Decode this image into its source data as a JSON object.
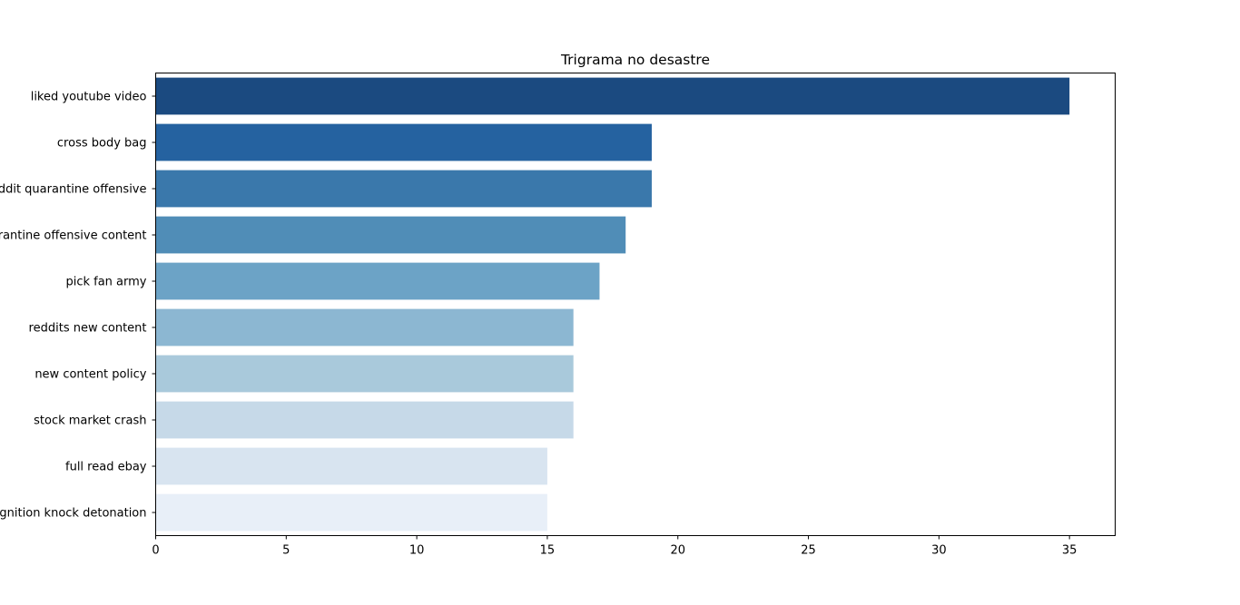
{
  "chart_data": {
    "type": "bar",
    "orientation": "horizontal",
    "title": "Trigrama no desastre",
    "xlabel": "",
    "ylabel": "",
    "categories": [
      "liked youtube video",
      "cross body bag",
      "reddit quarantine offensive",
      "quarantine offensive content",
      "pick fan army",
      "reddits new content",
      "new content policy",
      "stock market crash",
      "full read ebay",
      "ignition knock detonation"
    ],
    "values": [
      35,
      19,
      19,
      18,
      17,
      16,
      16,
      16,
      15,
      15
    ],
    "colors": [
      "#1b4a80",
      "#2562a0",
      "#3a78ab",
      "#508db7",
      "#6ca3c6",
      "#8cb7d2",
      "#a9c9db",
      "#c6d9e8",
      "#d8e4f0",
      "#e8eff8"
    ],
    "xlim": [
      0,
      36.75
    ],
    "xticks": [
      0,
      5,
      10,
      15,
      20,
      25,
      30,
      35
    ],
    "grid": false,
    "legend": "none"
  }
}
